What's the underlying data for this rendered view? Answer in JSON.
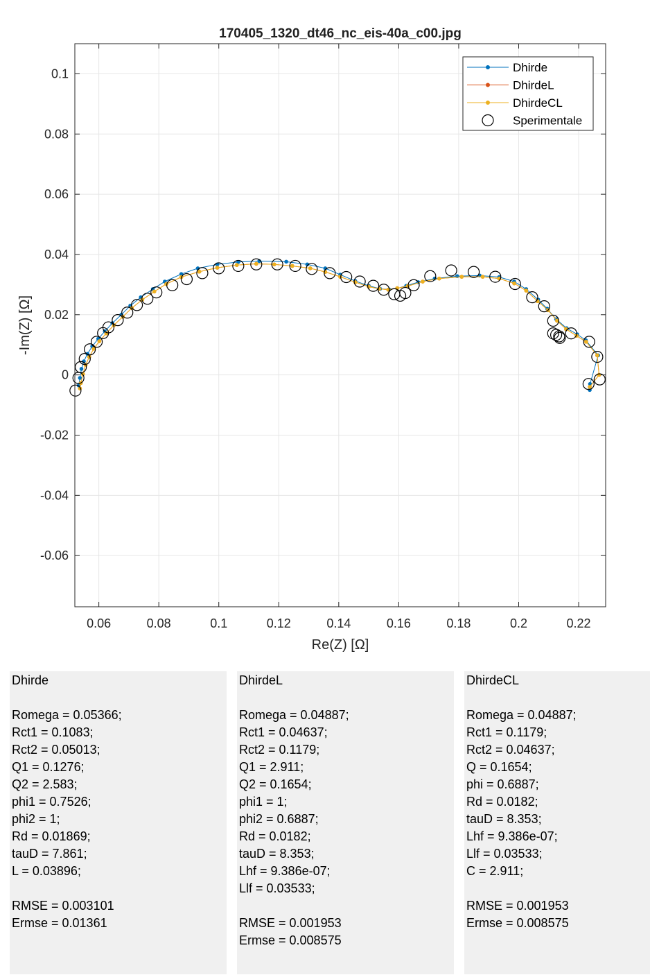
{
  "chart_data": {
    "type": "line",
    "title": "170405_1320_dt46_nc_eis-40a_c00.jpg",
    "xlabel": "Re(Z) [Ω]",
    "ylabel": "-Im(Z) [Ω]",
    "xlim": [
      0.052,
      0.229
    ],
    "ylim": [
      -0.077,
      0.11
    ],
    "x_ticks": [
      "0.06",
      "0.08",
      "0.1",
      "0.12",
      "0.14",
      "0.16",
      "0.18",
      "0.2",
      "0.22"
    ],
    "x_tick_values": [
      0.06,
      0.08,
      0.1,
      0.12,
      0.14,
      0.16,
      0.18,
      0.2,
      0.22
    ],
    "y_ticks": [
      "0.1",
      "0.08",
      "0.06",
      "0.04",
      "0.02",
      "0",
      "-0.02",
      "-0.04",
      "-0.06"
    ],
    "y_tick_values": [
      0.1,
      0.08,
      0.06,
      0.04,
      0.02,
      0,
      -0.02,
      -0.04,
      -0.06
    ],
    "grid": true,
    "legend_position": "top-right",
    "series": [
      {
        "name": "Dhirde",
        "color": "#0072bd",
        "marker": "dot",
        "points": [
          [
            0.2237,
            -0.005
          ],
          [
            0.2238,
            -0.003
          ],
          [
            0.2265,
            0.0065
          ],
          [
            0.2224,
            0.0115
          ],
          [
            0.2195,
            0.0135
          ],
          [
            0.216,
            0.0155
          ],
          [
            0.2125,
            0.0185
          ],
          [
            0.2095,
            0.022
          ],
          [
            0.2065,
            0.025
          ],
          [
            0.2025,
            0.0285
          ],
          [
            0.1985,
            0.031
          ],
          [
            0.1935,
            0.0325
          ],
          [
            0.187,
            0.033
          ],
          [
            0.1795,
            0.0328
          ],
          [
            0.172,
            0.032
          ],
          [
            0.1665,
            0.0308
          ],
          [
            0.1625,
            0.0296
          ],
          [
            0.1595,
            0.0287
          ],
          [
            0.1568,
            0.0284
          ],
          [
            0.1538,
            0.0286
          ],
          [
            0.15,
            0.0296
          ],
          [
            0.1455,
            0.0312
          ],
          [
            0.1405,
            0.0333
          ],
          [
            0.1355,
            0.0354
          ],
          [
            0.1295,
            0.0367
          ],
          [
            0.1225,
            0.0376
          ],
          [
            0.1135,
            0.0378
          ],
          [
            0.1065,
            0.0375
          ],
          [
            0.0995,
            0.0367
          ],
          [
            0.093,
            0.0354
          ],
          [
            0.0875,
            0.0335
          ],
          [
            0.082,
            0.031
          ],
          [
            0.078,
            0.0285
          ],
          [
            0.074,
            0.0258
          ],
          [
            0.0705,
            0.023
          ],
          [
            0.0675,
            0.02
          ],
          [
            0.0645,
            0.0172
          ],
          [
            0.062,
            0.0145
          ],
          [
            0.0598,
            0.012
          ],
          [
            0.0578,
            0.0095
          ],
          [
            0.0562,
            0.007
          ],
          [
            0.055,
            0.0045
          ],
          [
            0.0542,
            0.002
          ],
          [
            0.0537,
            -0.001
          ],
          [
            0.0533,
            -0.0035
          ]
        ]
      },
      {
        "name": "DhirdeL",
        "color": "#d95319",
        "marker": "dot",
        "points": [
          [
            0.2237,
            -0.004
          ],
          [
            0.2268,
            0.0
          ],
          [
            0.2262,
            0.0065
          ],
          [
            0.2225,
            0.011
          ],
          [
            0.2193,
            0.013
          ],
          [
            0.2158,
            0.0152
          ],
          [
            0.2128,
            0.018
          ],
          [
            0.2098,
            0.0215
          ],
          [
            0.2063,
            0.0245
          ],
          [
            0.2025,
            0.028
          ],
          [
            0.1985,
            0.0304
          ],
          [
            0.1935,
            0.032
          ],
          [
            0.188,
            0.0326
          ],
          [
            0.181,
            0.0326
          ],
          [
            0.1735,
            0.032
          ],
          [
            0.168,
            0.031
          ],
          [
            0.163,
            0.0295
          ],
          [
            0.1595,
            0.0288
          ],
          [
            0.1565,
            0.0283
          ],
          [
            0.1535,
            0.0286
          ],
          [
            0.15,
            0.0293
          ],
          [
            0.1455,
            0.0308
          ],
          [
            0.1405,
            0.0326
          ],
          [
            0.1355,
            0.0342
          ],
          [
            0.1305,
            0.0354
          ],
          [
            0.1245,
            0.0362
          ],
          [
            0.1185,
            0.0367
          ],
          [
            0.1125,
            0.0369
          ],
          [
            0.106,
            0.0365
          ],
          [
            0.0995,
            0.0356
          ],
          [
            0.0935,
            0.0343
          ],
          [
            0.0875,
            0.0325
          ],
          [
            0.0825,
            0.0302
          ],
          [
            0.0785,
            0.0277
          ],
          [
            0.0745,
            0.025
          ],
          [
            0.071,
            0.0222
          ],
          [
            0.068,
            0.0193
          ],
          [
            0.065,
            0.0165
          ],
          [
            0.0625,
            0.0138
          ],
          [
            0.0602,
            0.0112
          ],
          [
            0.0583,
            0.0087
          ],
          [
            0.0568,
            0.006
          ],
          [
            0.0556,
            0.0033
          ],
          [
            0.0547,
            0.0003
          ],
          [
            0.054,
            -0.0027
          ],
          [
            0.0537,
            -0.0045
          ]
        ]
      },
      {
        "name": "DhirdeCL",
        "color": "#edb120",
        "marker": "dot",
        "points": [
          [
            0.2237,
            -0.004
          ],
          [
            0.2268,
            0.0
          ],
          [
            0.2262,
            0.0065
          ],
          [
            0.2225,
            0.011
          ],
          [
            0.2193,
            0.013
          ],
          [
            0.2158,
            0.0152
          ],
          [
            0.2128,
            0.018
          ],
          [
            0.2098,
            0.0215
          ],
          [
            0.2063,
            0.0245
          ],
          [
            0.2025,
            0.028
          ],
          [
            0.1985,
            0.0304
          ],
          [
            0.1935,
            0.032
          ],
          [
            0.188,
            0.0326
          ],
          [
            0.181,
            0.0326
          ],
          [
            0.1735,
            0.032
          ],
          [
            0.168,
            0.031
          ],
          [
            0.163,
            0.0295
          ],
          [
            0.1595,
            0.0288
          ],
          [
            0.1565,
            0.0283
          ],
          [
            0.1535,
            0.0286
          ],
          [
            0.15,
            0.0293
          ],
          [
            0.1455,
            0.0308
          ],
          [
            0.1405,
            0.0326
          ],
          [
            0.1355,
            0.0342
          ],
          [
            0.1305,
            0.0354
          ],
          [
            0.1245,
            0.0362
          ],
          [
            0.1185,
            0.0367
          ],
          [
            0.1125,
            0.0369
          ],
          [
            0.106,
            0.0365
          ],
          [
            0.0995,
            0.0356
          ],
          [
            0.0935,
            0.0343
          ],
          [
            0.0875,
            0.0325
          ],
          [
            0.0825,
            0.0302
          ],
          [
            0.0785,
            0.0277
          ],
          [
            0.0745,
            0.025
          ],
          [
            0.071,
            0.0222
          ],
          [
            0.068,
            0.0193
          ],
          [
            0.065,
            0.0165
          ],
          [
            0.0625,
            0.0138
          ],
          [
            0.0602,
            0.0112
          ],
          [
            0.0583,
            0.0087
          ],
          [
            0.0568,
            0.006
          ],
          [
            0.0556,
            0.0033
          ],
          [
            0.0547,
            0.0003
          ],
          [
            0.054,
            -0.0027
          ],
          [
            0.0537,
            -0.0045
          ]
        ]
      },
      {
        "name": "Sperimentale",
        "color": "#000000",
        "marker": "circle",
        "points": [
          [
            0.2233,
            -0.003
          ],
          [
            0.227,
            -0.0015
          ],
          [
            0.2262,
            0.006
          ],
          [
            0.2235,
            0.011
          ],
          [
            0.2175,
            0.0138
          ],
          [
            0.2137,
            0.0123
          ],
          [
            0.2135,
            0.0128
          ],
          [
            0.2125,
            0.0133
          ],
          [
            0.2115,
            0.0138
          ],
          [
            0.2115,
            0.018
          ],
          [
            0.2085,
            0.0228
          ],
          [
            0.2045,
            0.0258
          ],
          [
            0.1988,
            0.0302
          ],
          [
            0.1922,
            0.0326
          ],
          [
            0.185,
            0.0342
          ],
          [
            0.1775,
            0.0347
          ],
          [
            0.1705,
            0.0328
          ],
          [
            0.165,
            0.0298
          ],
          [
            0.1622,
            0.0272
          ],
          [
            0.1605,
            0.0263
          ],
          [
            0.1585,
            0.0268
          ],
          [
            0.155,
            0.0283
          ],
          [
            0.1515,
            0.0296
          ],
          [
            0.147,
            0.031
          ],
          [
            0.1425,
            0.0325
          ],
          [
            0.137,
            0.0338
          ],
          [
            0.131,
            0.0352
          ],
          [
            0.1255,
            0.0362
          ],
          [
            0.1195,
            0.0367
          ],
          [
            0.1125,
            0.0367
          ],
          [
            0.1065,
            0.0362
          ],
          [
            0.1,
            0.0354
          ],
          [
            0.0945,
            0.0338
          ],
          [
            0.0893,
            0.0318
          ],
          [
            0.0845,
            0.0298
          ],
          [
            0.0792,
            0.0274
          ],
          [
            0.0762,
            0.0253
          ],
          [
            0.0727,
            0.0232
          ],
          [
            0.0695,
            0.0207
          ],
          [
            0.0663,
            0.0182
          ],
          [
            0.0632,
            0.0158
          ],
          [
            0.0614,
            0.0139
          ],
          [
            0.0593,
            0.011
          ],
          [
            0.057,
            0.0085
          ],
          [
            0.0553,
            0.0053
          ],
          [
            0.054,
            0.0026
          ],
          [
            0.0532,
            -0.001
          ],
          [
            0.0522,
            -0.0052
          ]
        ]
      }
    ]
  },
  "panels": [
    {
      "title": "Dhirde",
      "lines": [
        "",
        "Romega = 0.05366;",
        "Rct1 = 0.1083;",
        "Rct2 = 0.05013;",
        "Q1 = 0.1276;",
        "Q2 = 2.583;",
        "phi1 = 0.7526;",
        "phi2 = 1;",
        "Rd = 0.01869;",
        "tauD = 7.861;",
        "L = 0.03896;",
        "",
        "RMSE = 0.003101",
        "Ermse = 0.01361"
      ]
    },
    {
      "title": "DhirdeL",
      "lines": [
        "",
        "Romega = 0.04887;",
        "Rct1 = 0.04637;",
        "Rct2 = 0.1179;",
        "Q1 = 2.911;",
        "Q2 = 0.1654;",
        "phi1 = 1;",
        "phi2 = 0.6887;",
        "Rd = 0.0182;",
        "tauD = 8.353;",
        "Lhf = 9.386e-07;",
        "Llf = 0.03533;",
        "",
        "RMSE = 0.001953",
        "Ermse = 0.008575"
      ]
    },
    {
      "title": "DhirdeCL",
      "lines": [
        "",
        "Romega = 0.04887;",
        "Rct1 = 0.1179;",
        "Rct2 = 0.04637;",
        "Q = 0.1654;",
        "phi = 0.6887;",
        "Rd = 0.0182;",
        "tauD = 8.353;",
        "Lhf = 9.386e-07;",
        "Llf = 0.03533;",
        "C = 2.911;",
        "",
        "RMSE = 0.001953",
        "Ermse = 0.008575"
      ]
    }
  ]
}
